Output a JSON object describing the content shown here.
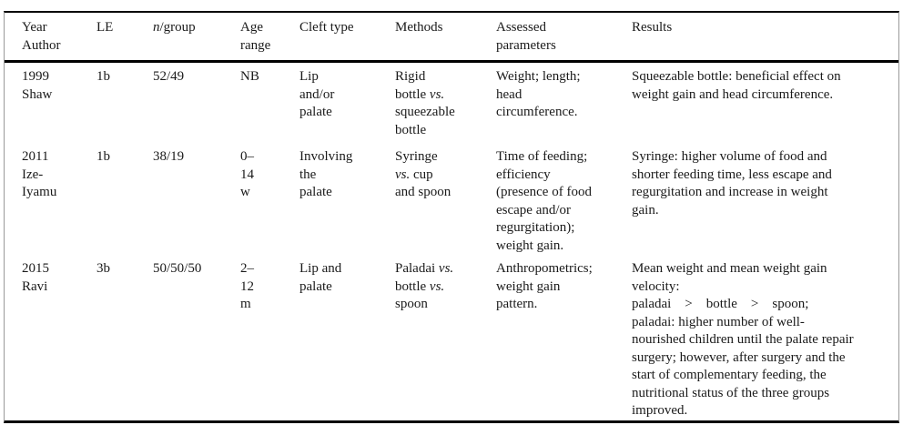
{
  "page": {
    "background": "#ffffff",
    "text_color": "#1a1a1a",
    "rule_color": "#000000",
    "edge_line_color": "#9a9a9a"
  },
  "table": {
    "columns": [
      {
        "key": "year_author",
        "label": "Year\nAuthor"
      },
      {
        "key": "le",
        "label": "LE"
      },
      {
        "key": "n_group",
        "label": "<i>n</i>/group"
      },
      {
        "key": "age_range",
        "label": "Age\nrange"
      },
      {
        "key": "cleft_type",
        "label": "Cleft type"
      },
      {
        "key": "methods",
        "label": "Methods"
      },
      {
        "key": "assessed_parameters",
        "label": "Assessed\nparameters"
      },
      {
        "key": "results",
        "label": "Results"
      }
    ],
    "rows": [
      {
        "year_author": "1999\nShaw",
        "le": "1b",
        "n_group": "52/49",
        "age_range": "NB",
        "cleft_type": "Lip\nand/or\npalate",
        "methods": "Rigid\nbottle <i>vs.</i>\nsqueezable\nbottle",
        "assessed_parameters": "Weight; length;\nhead\ncircumference.",
        "results": "Squeezable bottle: beneficial effect on\nweight gain and head circumference."
      },
      {
        "year_author": "2011\nIze-\nIyamu",
        "le": "1b",
        "n_group": "38/19",
        "age_range": "0–\n14\nw",
        "cleft_type": "Involving\nthe\npalate",
        "methods": "Syringe\n<i>vs.</i> cup\nand spoon",
        "assessed_parameters": "Time of feeding;\nefficiency\n(presence of food\nescape and/or\nregurgitation);\nweight gain.",
        "results": "Syringe: higher volume of food and\nshorter feeding time, less escape and\nregurgitation and increase in weight\ngain."
      },
      {
        "year_author": "2015\nRavi",
        "le": "3b",
        "n_group": "50/50/50",
        "age_range": "2–\n12\nm",
        "cleft_type": "Lip and\npalate",
        "methods": "Paladai <i>vs.</i>\nbottle <i>vs.</i>\nspoon",
        "assessed_parameters": "Anthropometrics;\nweight gain\npattern.",
        "results": "Mean weight and mean weight gain\nvelocity:\npaladai    >    bottle    >    spoon;\npaladai: higher number of well-\nnourished children until the palate repair\nsurgery; however, after surgery and the\nstart of complementary feeding, the\nnutritional status of the three groups\nimproved."
      }
    ]
  }
}
